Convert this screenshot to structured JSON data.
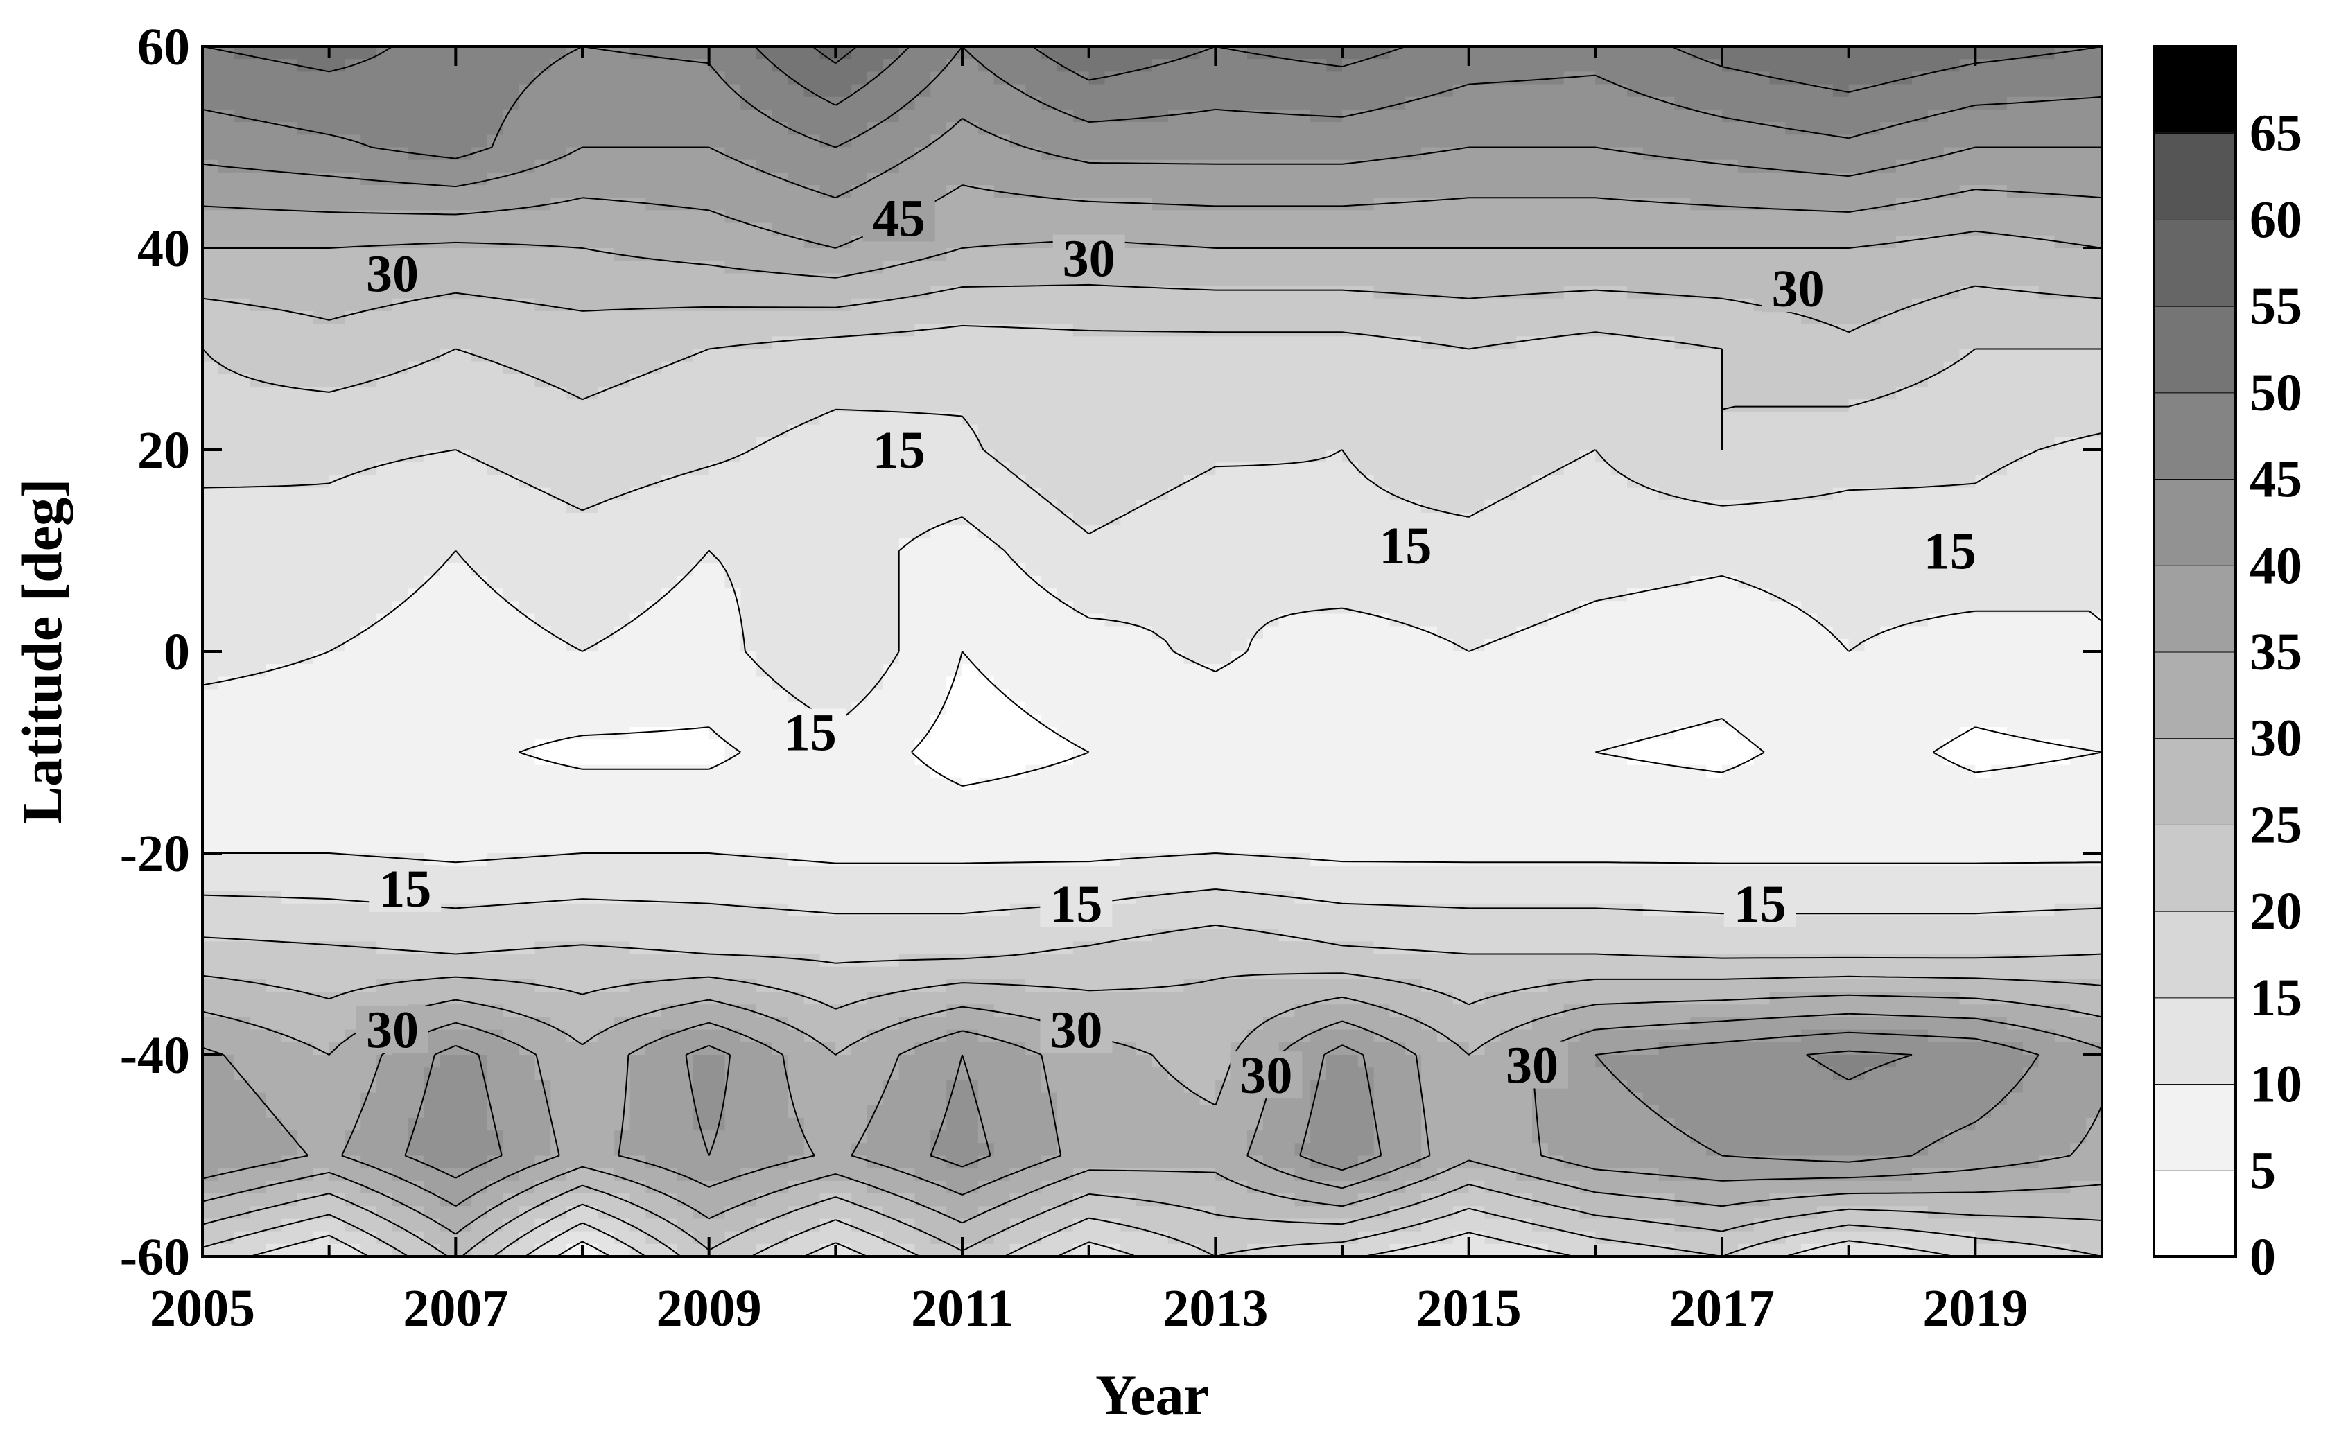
{
  "chart_data": {
    "type": "heatmap",
    "style": "filled contour, grayscale",
    "title": "",
    "xlabel": "Year",
    "ylabel": "Latitude [deg]",
    "xlim": [
      2005,
      2020
    ],
    "ylim": [
      -60,
      60
    ],
    "x_tick_labels": [
      "2005",
      "2007",
      "2009",
      "2011",
      "2013",
      "2015",
      "2017",
      "2019"
    ],
    "x_ticks": [
      2005,
      2007,
      2009,
      2011,
      2013,
      2015,
      2017,
      2019
    ],
    "x_minor_ticks": [
      2006,
      2008,
      2010,
      2012,
      2014,
      2016,
      2018,
      2020
    ],
    "y_tick_labels": [
      "60",
      "40",
      "20",
      "0",
      "-20",
      "-40",
      "-60"
    ],
    "y_ticks": [
      60,
      40,
      20,
      0,
      -20,
      -40,
      -60
    ],
    "colorbar": {
      "levels": [
        0,
        5,
        10,
        15,
        20,
        25,
        30,
        35,
        40,
        45,
        50,
        55,
        60,
        65,
        70
      ],
      "tick_labels": [
        "0",
        "5",
        "10",
        "15",
        "20",
        "25",
        "30",
        "35",
        "40",
        "45",
        "50",
        "55",
        "60",
        "65"
      ],
      "colors": [
        "#ffffff",
        "#f2f2f2",
        "#e4e4e4",
        "#d7d7d7",
        "#c9c9c9",
        "#bcbcbc",
        "#aeaeae",
        "#a0a0a0",
        "#929292",
        "#848484",
        "#757575",
        "#666666",
        "#555555",
        "#2e2e2e"
      ]
    },
    "years": [
      2005,
      2006,
      2007,
      2008,
      2009,
      2010,
      2011,
      2012,
      2013,
      2014,
      2015,
      2016,
      2017,
      2018,
      2019,
      2020
    ],
    "latitudes": [
      60,
      50,
      40,
      30,
      20,
      10,
      0,
      -10,
      -20,
      -30,
      -40,
      -50,
      -60
    ],
    "values": [
      [
        50,
        52,
        48,
        45,
        46,
        57,
        45,
        54,
        50,
        52,
        48,
        47,
        52,
        55,
        52,
        50
      ],
      [
        42,
        44,
        47,
        40,
        40,
        45,
        38,
        42,
        42,
        42,
        40,
        40,
        42,
        44,
        40,
        40
      ],
      [
        30,
        30,
        29,
        30,
        32,
        35,
        30,
        29,
        30,
        30,
        30,
        30,
        30,
        30,
        28,
        30
      ],
      [
        20,
        23,
        20,
        22,
        20,
        18,
        17,
        18,
        18,
        18,
        20,
        18,
        20,
        24,
        20,
        20
      ],
      [
        18,
        16,
        15,
        18,
        16,
        13,
        14,
        20,
        16,
        15,
        17,
        15,
        20,
        17,
        16,
        14
      ],
      [
        10,
        13,
        10,
        13,
        10,
        12,
        8,
        14,
        10,
        14,
        14,
        12,
        11,
        12,
        13,
        10
      ],
      [
        12,
        10,
        8,
        10,
        8,
        15,
        5,
        8,
        11,
        7,
        10,
        8,
        7,
        10,
        8,
        10
      ],
      [
        6,
        6,
        6,
        4,
        4,
        8,
        3,
        5,
        6,
        5,
        6,
        5,
        4,
        7,
        4,
        5
      ],
      [
        10,
        10,
        9,
        10,
        10,
        9,
        9,
        9,
        10,
        9,
        9,
        9,
        9,
        9,
        9,
        9
      ],
      [
        22,
        21,
        20,
        21,
        20,
        19,
        19,
        21,
        24,
        21,
        20,
        20,
        19,
        19,
        19,
        20
      ],
      [
        36,
        30,
        42,
        31,
        42,
        30,
        40,
        32,
        28,
        42,
        30,
        40,
        43,
        46,
        44,
        36
      ],
      [
        40,
        34,
        44,
        33,
        40,
        34,
        42,
        33,
        32,
        44,
        31,
        38,
        40,
        42,
        38,
        34
      ],
      [
        18,
        10,
        26,
        6,
        24,
        12,
        24,
        12,
        20,
        16,
        10,
        16,
        20,
        10,
        16,
        20
      ]
    ],
    "contour_labels": [
      {
        "text": "45",
        "x": 2010.5,
        "y": 43
      },
      {
        "text": "30",
        "x": 2006.5,
        "y": 37.5
      },
      {
        "text": "30",
        "x": 2012.0,
        "y": 39
      },
      {
        "text": "30",
        "x": 2017.6,
        "y": 36
      },
      {
        "text": "15",
        "x": 2010.5,
        "y": 20
      },
      {
        "text": "15",
        "x": 2014.5,
        "y": 10.5
      },
      {
        "text": "15",
        "x": 2018.8,
        "y": 10
      },
      {
        "text": "15",
        "x": 2009.8,
        "y": -8
      },
      {
        "text": "15",
        "x": 2006.6,
        "y": -23.5
      },
      {
        "text": "15",
        "x": 2011.9,
        "y": -25
      },
      {
        "text": "15",
        "x": 2017.3,
        "y": -25
      },
      {
        "text": "30",
        "x": 2006.5,
        "y": -37.5
      },
      {
        "text": "30",
        "x": 2011.9,
        "y": -37.5
      },
      {
        "text": "30",
        "x": 2013.4,
        "y": -42
      },
      {
        "text": "30",
        "x": 2015.5,
        "y": -41
      }
    ]
  }
}
